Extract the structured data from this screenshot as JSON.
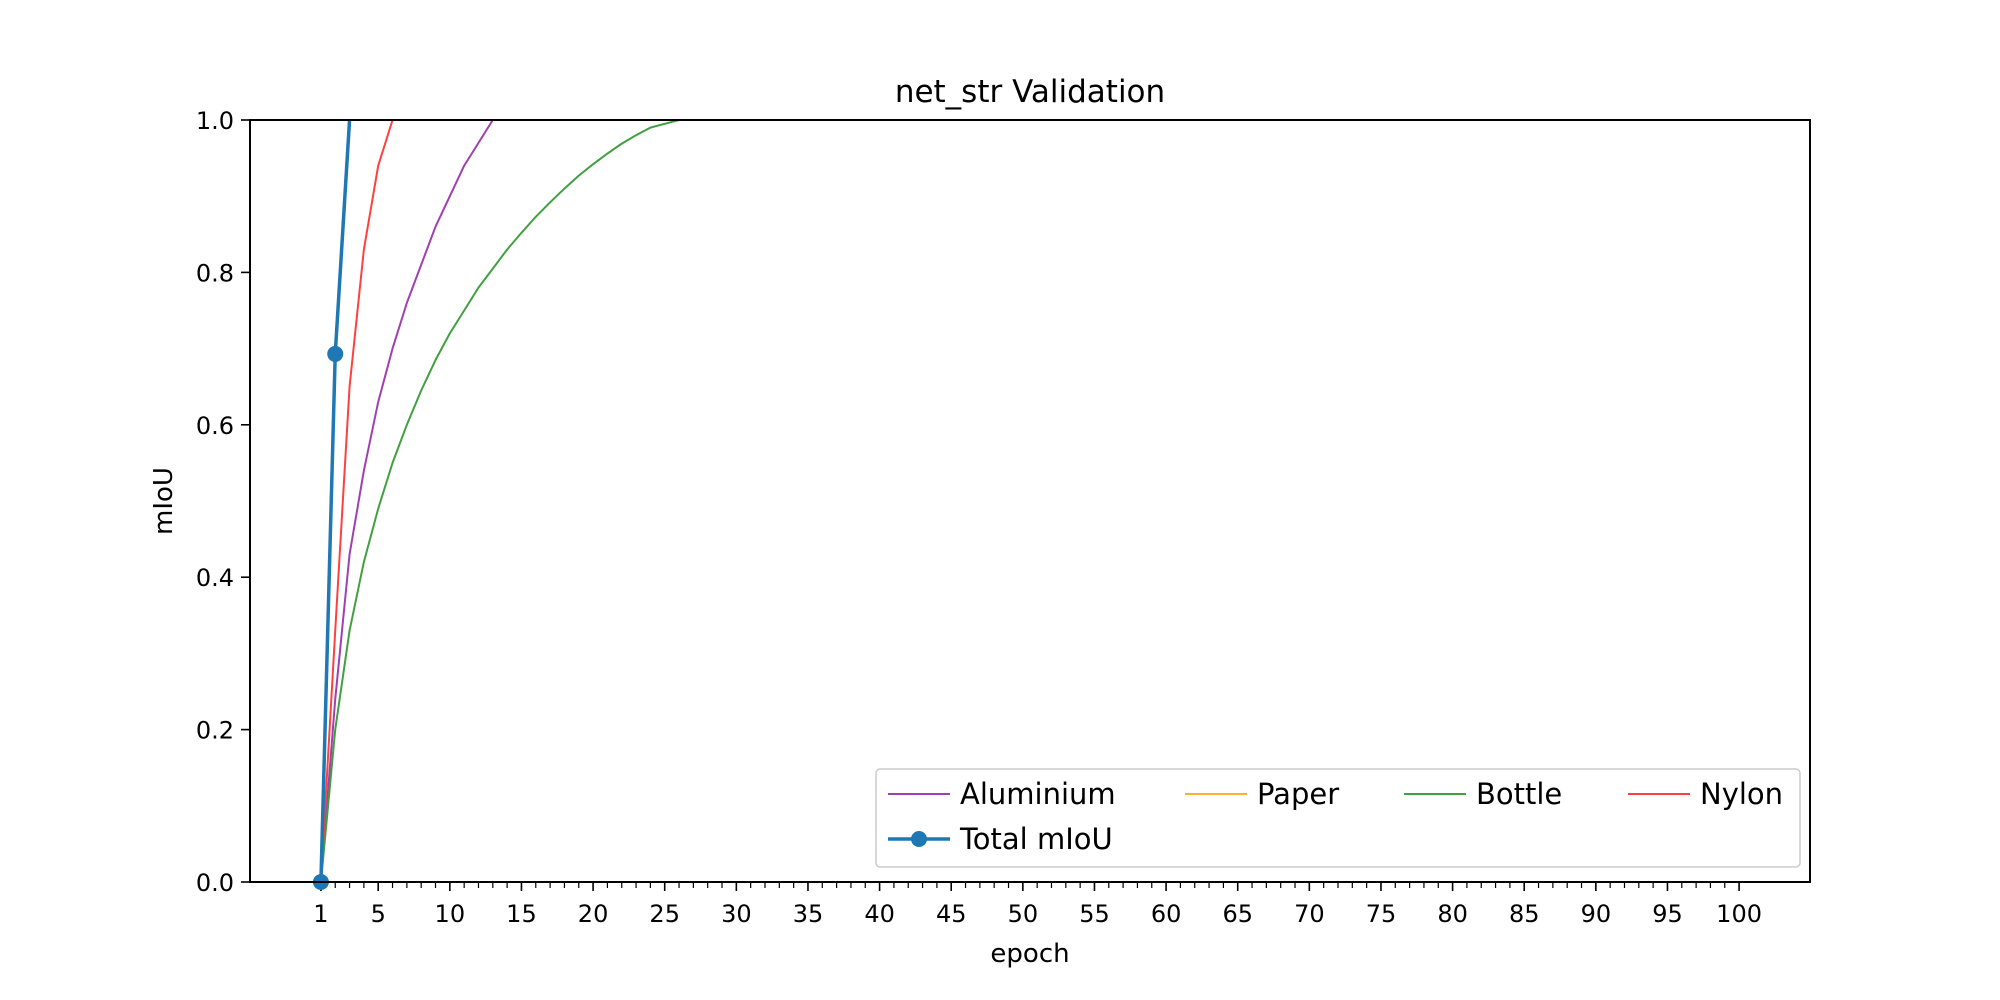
{
  "chart_data": {
    "type": "line",
    "title": "net_str Validation",
    "xlabel": "epoch",
    "ylabel": "mIoU",
    "xlim": [
      -3.95,
      104.95
    ],
    "ylim": [
      0.0,
      1.0
    ],
    "x_ticks": [
      1,
      5,
      10,
      15,
      20,
      25,
      30,
      35,
      40,
      45,
      50,
      55,
      60,
      65,
      70,
      75,
      80,
      85,
      90,
      95,
      100
    ],
    "x_minor_ticks_every": 1,
    "y_ticks": [
      "0.0",
      "0.2",
      "0.4",
      "0.6",
      "0.8",
      "1.0"
    ],
    "grid": false,
    "legend": {
      "placement": "lower right",
      "ncol": 4
    },
    "series": [
      {
        "name": "Aluminium",
        "color": "#a040b0",
        "marker": "none",
        "x": [
          1,
          2,
          3,
          4,
          5,
          6,
          7,
          8,
          9,
          10,
          11,
          12,
          13
        ],
        "y": [
          0.0,
          0.24,
          0.43,
          0.54,
          0.63,
          0.7,
          0.76,
          0.81,
          0.86,
          0.9,
          0.94,
          0.97,
          1.0
        ]
      },
      {
        "name": "Paper",
        "color": "#ffb030",
        "marker": "none",
        "x": [
          1,
          2,
          3
        ],
        "y": [
          0.0,
          0.7,
          1.0
        ]
      },
      {
        "name": "Bottle",
        "color": "#40a040",
        "marker": "none",
        "x": [
          1,
          2,
          3,
          4,
          5,
          6,
          7,
          8,
          9,
          10,
          11,
          12,
          13,
          14,
          15,
          16,
          17,
          18,
          19,
          20,
          21,
          22,
          23,
          24,
          25,
          26,
          27
        ],
        "y": [
          0.0,
          0.2,
          0.33,
          0.42,
          0.49,
          0.55,
          0.6,
          0.645,
          0.685,
          0.72,
          0.75,
          0.78,
          0.805,
          0.83,
          0.852,
          0.873,
          0.892,
          0.91,
          0.927,
          0.942,
          0.956,
          0.969,
          0.98,
          0.99,
          0.995,
          1.0,
          1.0
        ]
      },
      {
        "name": "Nylon",
        "color": "#ff4040",
        "marker": "none",
        "x": [
          1,
          2,
          3,
          4,
          5,
          6
        ],
        "y": [
          0.0,
          0.33,
          0.65,
          0.83,
          0.94,
          1.0
        ]
      },
      {
        "name": "Total mIoU",
        "color": "#1f77b4",
        "marker": "circle",
        "x": [
          1,
          2,
          3
        ],
        "y": [
          0.0,
          0.693,
          1.0
        ]
      }
    ]
  }
}
